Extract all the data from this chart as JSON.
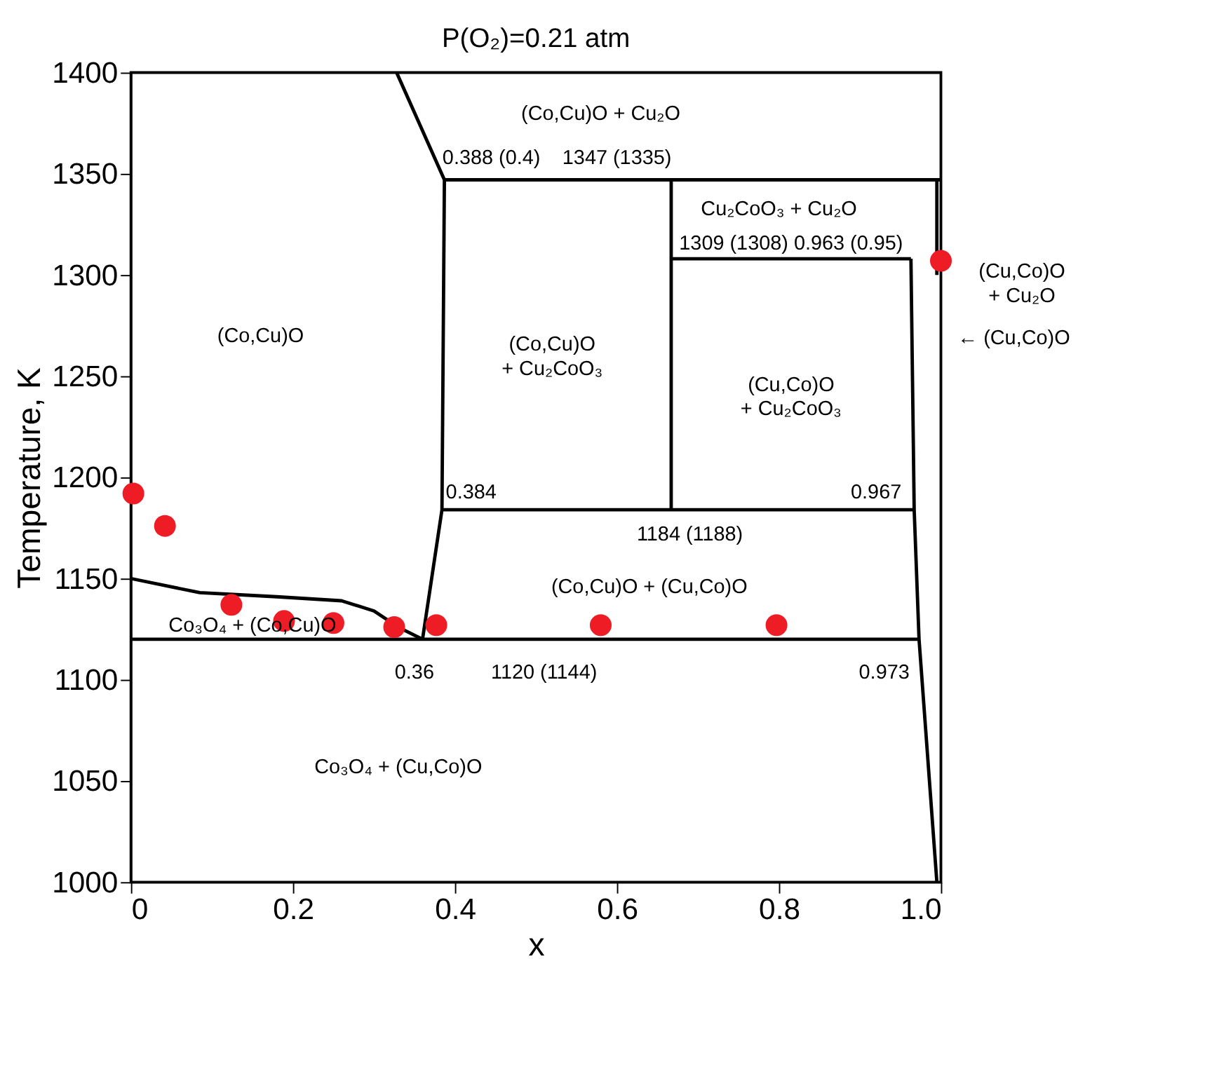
{
  "chart_data": {
    "type": "line",
    "title": "P(O₂)=0.21 atm",
    "xlabel": "x",
    "ylabel": "Temperature, K",
    "xlim": [
      0,
      1
    ],
    "xticks": [
      0,
      0.2,
      0.4,
      0.6,
      0.8,
      {
        "value": 1,
        "label": "1.0"
      }
    ],
    "ylim": [
      1000,
      1400
    ],
    "yticks": [
      1000,
      1050,
      1100,
      1150,
      1200,
      1250,
      1300,
      1350,
      1400
    ],
    "grid": false,
    "series": [
      {
        "color": "#000000",
        "x": [
          0.388,
          1.0
        ],
        "values": [
          1347,
          1347
        ]
      },
      {
        "color": "#000000",
        "x": [
          0.667,
          0.963
        ],
        "values": [
          1308,
          1308
        ]
      },
      {
        "color": "#000000",
        "x": [
          0.384,
          0.967
        ],
        "values": [
          1184,
          1184
        ]
      },
      {
        "color": "#000000",
        "x": [
          0,
          0.973
        ],
        "values": [
          1120,
          1120
        ]
      },
      {
        "color": "#000000",
        "x": [
          0.667,
          0.667
        ],
        "values": [
          1184,
          1347
        ]
      },
      {
        "color": "#000000",
        "x": [
          0.328,
          0.387,
          0.384,
          0.36
        ],
        "values": [
          1400,
          1347,
          1184,
          1120
        ]
      },
      {
        "color": "#000000",
        "x": [
          0.963,
          0.967,
          0.973,
          0.995
        ],
        "values": [
          1308,
          1184,
          1120,
          1000
        ]
      },
      {
        "color": "#000000",
        "x": [
          0.995,
          0.995
        ],
        "values": [
          1347,
          1300
        ]
      },
      {
        "color": "#000000",
        "x": [
          0,
          0.085,
          0.18,
          0.26,
          0.3,
          0.33,
          0.36
        ],
        "values": [
          1150,
          1143,
          1141,
          1139,
          1134,
          1126,
          1120
        ]
      },
      {
        "type": "scatter",
        "color": "#ee1c25",
        "x": [
          0.003,
          0.042,
          0.124,
          0.189,
          0.25,
          0.325,
          0.377,
          0.58,
          0.797,
          1.0
        ],
        "values": [
          1192,
          1176,
          1137,
          1129,
          1128,
          1126,
          1127,
          1127,
          1127,
          1307
        ]
      }
    ],
    "annotations": [
      "(Co,Cu)O + Cu₂O",
      "0.388 (0.4)",
      "1347 (1335)",
      "Cu₂CoO₃ + Cu₂O",
      "1309 (1308) 0.963 (0.95)",
      "(Cu,Co)O\n+ Cu₂O",
      "← (Cu,Co)O",
      "(Co,Cu)O",
      "(Co,Cu)O\n+ Cu₂CoO₃",
      "(Cu,Co)O\n+ Cu₂CoO₃",
      "0.384",
      "0.967",
      "1184 (1188)",
      "(Co,Cu)O + (Cu,Co)O",
      "Co₃O₄ + (Co,Cu)O",
      "0.36",
      "1120 (1144)",
      "0.973",
      "Co₃O₄ + (Cu,Co)O"
    ]
  }
}
